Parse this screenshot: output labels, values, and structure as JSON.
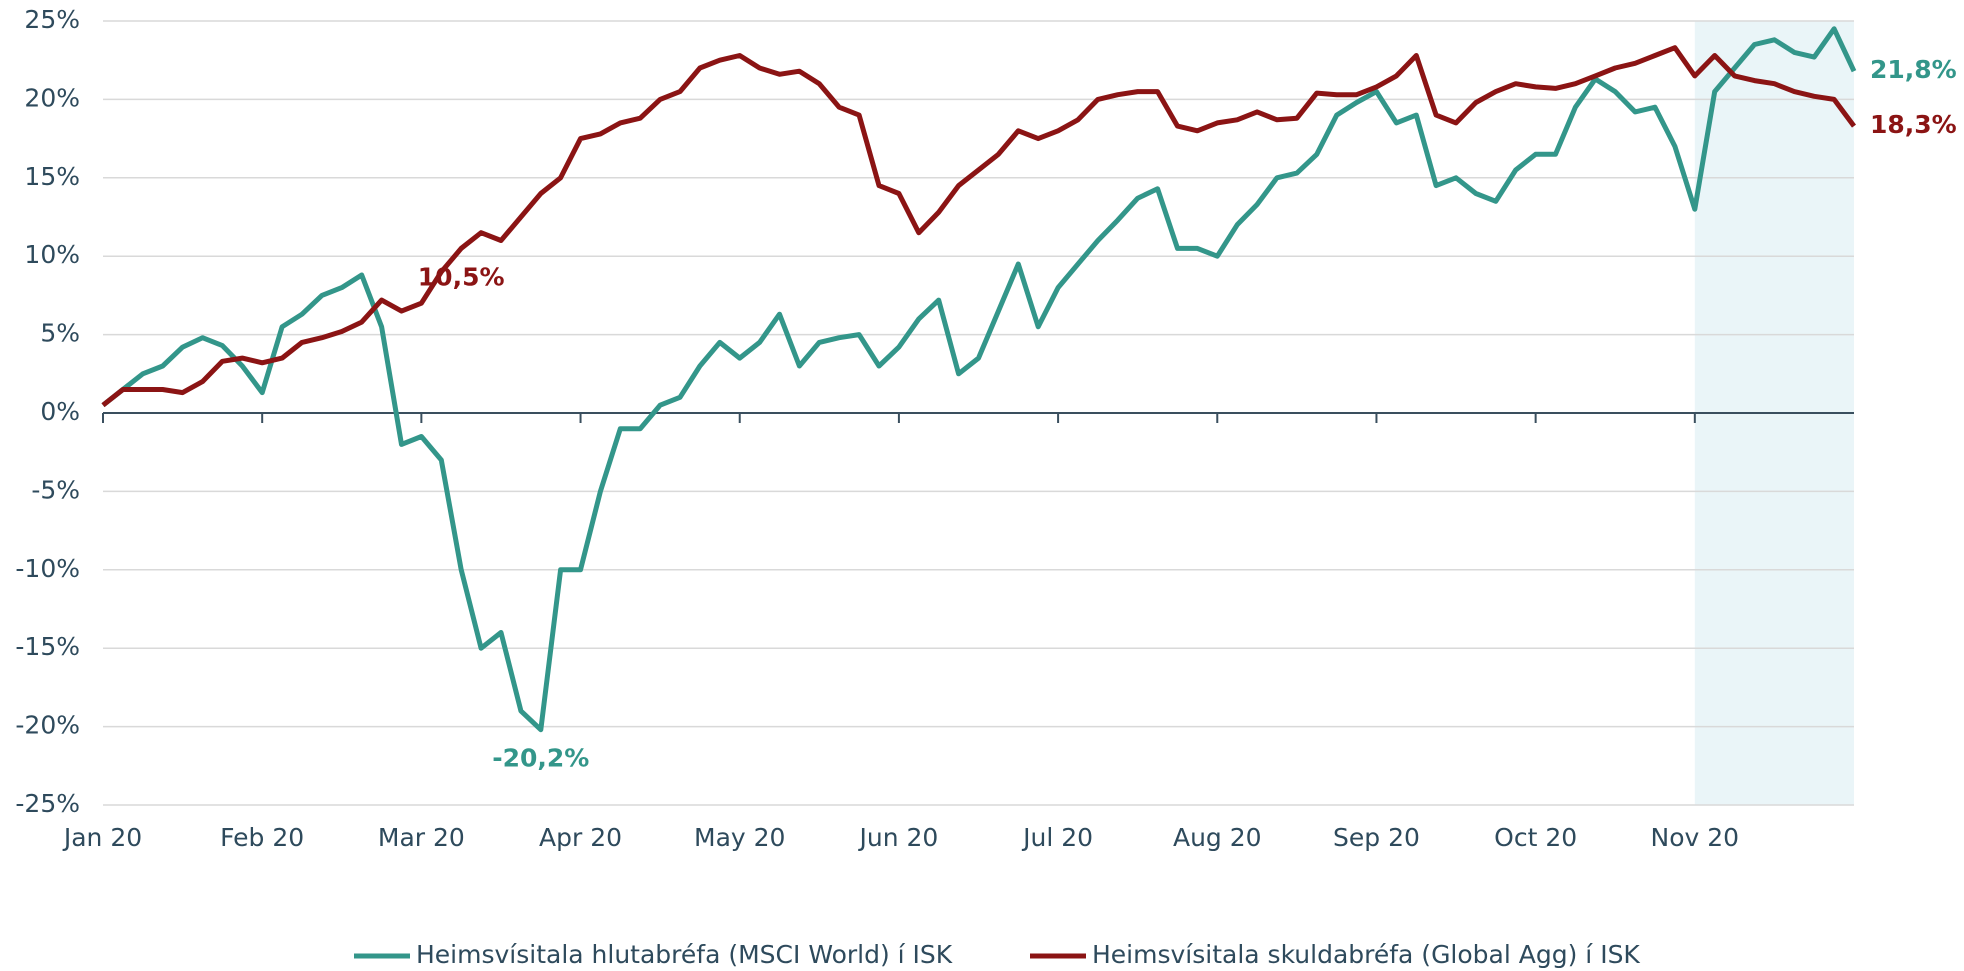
{
  "chart_data": {
    "type": "line",
    "categories": [
      "Jan 20",
      null,
      null,
      null,
      null,
      null,
      null,
      null,
      "Feb 20",
      null,
      null,
      null,
      null,
      null,
      null,
      null,
      "Mar 20",
      null,
      null,
      null,
      null,
      null,
      null,
      null,
      "Apr 20",
      null,
      null,
      null,
      null,
      null,
      null,
      null,
      "May 20",
      null,
      null,
      null,
      null,
      null,
      null,
      null,
      "Jun 20",
      null,
      null,
      null,
      null,
      null,
      null,
      null,
      "Jul 20",
      null,
      null,
      null,
      null,
      null,
      null,
      null,
      "Aug 20",
      null,
      null,
      null,
      null,
      null,
      null,
      null,
      "Sep 20",
      null,
      null,
      null,
      null,
      null,
      null,
      null,
      "Oct 20",
      null,
      null,
      null,
      null,
      null,
      null,
      null,
      "Nov 20",
      null,
      null,
      null,
      null,
      null,
      null,
      null,
      null
    ],
    "series": [
      {
        "name": "Heimsvísitala hlutabréfa (MSCI World) í ISK",
        "color": "#33968a",
        "values": [
          0.5,
          1.5,
          2.5,
          3.0,
          4.2,
          4.8,
          4.3,
          3.0,
          1.3,
          5.5,
          6.3,
          7.5,
          8.0,
          8.8,
          5.5,
          -2.0,
          -1.5,
          -3.0,
          -10.0,
          -15.0,
          -14.0,
          -19.0,
          -20.2,
          -10.0,
          -10.0,
          -5.0,
          -1.0,
          -1.0,
          0.5,
          1.0,
          3.0,
          4.5,
          3.5,
          4.5,
          6.3,
          3.0,
          4.5,
          4.8,
          5.0,
          3.0,
          4.2,
          6.0,
          7.2,
          2.5,
          3.5,
          6.5,
          9.5,
          5.5,
          8.0,
          9.5,
          11.0,
          12.3,
          13.7,
          14.3,
          10.5,
          10.5,
          10.0,
          12.0,
          13.3,
          15.0,
          15.3,
          16.5,
          19.0,
          19.8,
          20.5,
          18.5,
          19.0,
          14.5,
          15.0,
          14.0,
          13.5,
          15.5,
          16.5,
          16.5,
          19.5,
          21.3,
          20.5,
          19.2,
          19.5,
          17.0,
          13.0,
          20.5,
          22.0,
          23.5,
          23.8,
          23.0,
          22.7,
          24.5,
          21.8
        ],
        "value_labels": [
          null,
          null,
          null,
          null,
          null,
          null,
          null,
          null,
          null,
          null,
          null,
          null,
          null,
          null,
          null,
          null,
          null,
          null,
          null,
          null,
          null,
          null,
          "-20,2%",
          null,
          null,
          null,
          null,
          null,
          null,
          null,
          null,
          null,
          null,
          null,
          null,
          null,
          null,
          null,
          null,
          null,
          null,
          null,
          null,
          null,
          null,
          null,
          null,
          null,
          null,
          null,
          null,
          null,
          null,
          null,
          null,
          null,
          null,
          null,
          null,
          null,
          null,
          null,
          null,
          null,
          null,
          null,
          null,
          null,
          null,
          null,
          null,
          null,
          null,
          null,
          null,
          null,
          null,
          null,
          null,
          null,
          null,
          null,
          null,
          null,
          null,
          null,
          null,
          null,
          "21,8%"
        ]
      },
      {
        "name": "Heimsvísitala skuldabréfa (Global Agg) í ISK",
        "color": "#8b1414",
        "values": [
          0.5,
          1.5,
          1.5,
          1.5,
          1.3,
          2.0,
          3.3,
          3.5,
          3.2,
          3.5,
          4.5,
          4.8,
          5.2,
          5.8,
          7.2,
          6.5,
          7.0,
          9.0,
          10.5,
          11.5,
          11.0,
          12.5,
          14.0,
          15.0,
          17.5,
          17.8,
          18.5,
          18.8,
          20.0,
          20.5,
          22.0,
          22.5,
          22.8,
          22.0,
          21.6,
          21.8,
          21.0,
          19.5,
          19.0,
          14.5,
          14.0,
          11.5,
          12.8,
          14.5,
          15.5,
          16.5,
          18.0,
          17.5,
          18.0,
          18.7,
          20.0,
          20.3,
          20.5,
          20.5,
          18.3,
          18.0,
          18.5,
          18.7,
          19.2,
          18.7,
          18.8,
          20.4,
          20.3,
          20.3,
          20.8,
          21.5,
          22.8,
          19.0,
          18.5,
          19.8,
          20.5,
          21.0,
          20.8,
          20.7,
          21.0,
          21.5,
          22.0,
          22.3,
          22.8,
          23.3,
          21.5,
          22.8,
          21.5,
          21.2,
          21.0,
          20.5,
          20.2,
          20.0,
          18.3
        ],
        "value_labels": [
          null,
          null,
          null,
          null,
          null,
          null,
          null,
          null,
          null,
          null,
          null,
          null,
          null,
          null,
          null,
          null,
          null,
          null,
          "10,5%",
          null,
          null,
          null,
          null,
          null,
          null,
          null,
          null,
          null,
          null,
          null,
          null,
          null,
          null,
          null,
          null,
          null,
          null,
          null,
          null,
          null,
          null,
          null,
          null,
          null,
          null,
          null,
          null,
          null,
          null,
          null,
          null,
          null,
          null,
          null,
          null,
          null,
          null,
          null,
          null,
          null,
          null,
          null,
          null,
          null,
          null,
          null,
          null,
          null,
          null,
          null,
          null,
          null,
          null,
          null,
          null,
          null,
          null,
          null,
          null,
          null,
          null,
          null,
          null,
          null,
          null,
          null,
          null,
          null,
          "18,3%"
        ]
      }
    ],
    "ylim": [
      -25,
      25
    ],
    "yticks": [
      {
        "value": -25,
        "label": "-25%"
      },
      {
        "value": -20,
        "label": "-20%"
      },
      {
        "value": -15,
        "label": "-15%"
      },
      {
        "value": -10,
        "label": "-10%"
      },
      {
        "value": -5,
        "label": "-5%"
      },
      {
        "value": 0,
        "label": "0%"
      },
      {
        "value": 5,
        "label": "5%"
      },
      {
        "value": 10,
        "label": "10%"
      },
      {
        "value": 15,
        "label": "15%"
      },
      {
        "value": 20,
        "label": "20%"
      },
      {
        "value": 25,
        "label": "25%"
      }
    ],
    "grid": true,
    "legend": "bottom"
  }
}
